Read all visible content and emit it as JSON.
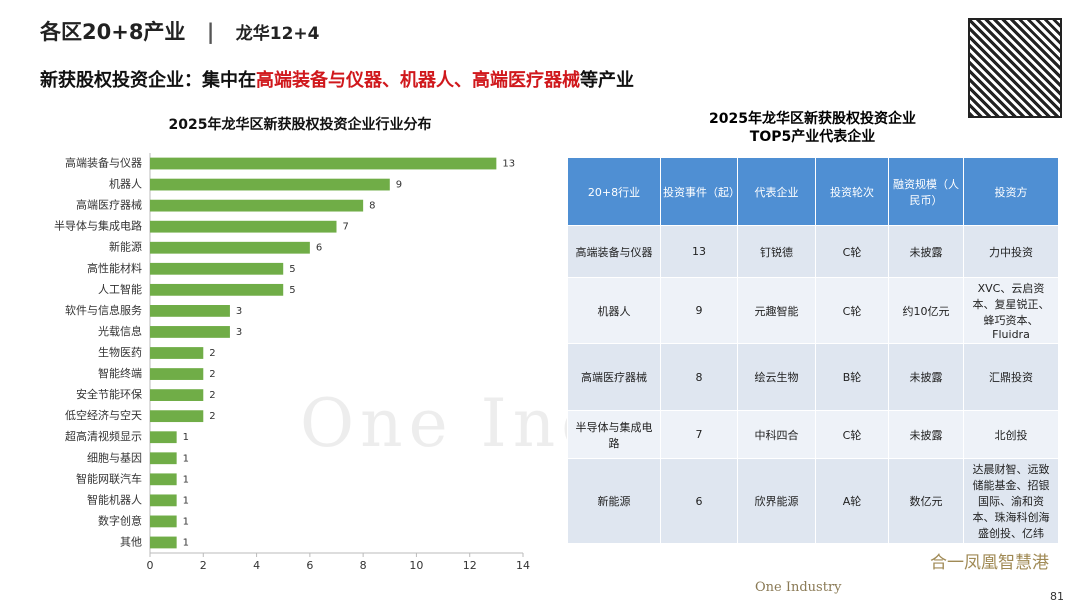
{
  "header": {
    "title": "各区20+8产业",
    "section": "龙华12+4",
    "subtitle_parts": [
      "新获股权投资企业：集中在",
      "高端装备与仪器、机器人、高端医疗器械",
      "等产业"
    ]
  },
  "chart_data": {
    "type": "bar",
    "orientation": "horizontal",
    "title": "2025年龙华区新获股权投资企业行业分布",
    "categories": [
      "高端装备与仪器",
      "机器人",
      "高端医疗器械",
      "半导体与集成电路",
      "新能源",
      "高性能材料",
      "人工智能",
      "软件与信息服务",
      "光载信息",
      "生物医药",
      "智能终端",
      "安全节能环保",
      "低空经济与空天",
      "超高清视频显示",
      "细胞与基因",
      "智能网联汽车",
      "智能机器人",
      "数字创意",
      "其他"
    ],
    "values": [
      13,
      9,
      8,
      7,
      6,
      5,
      5,
      3,
      3,
      2,
      2,
      2,
      2,
      1,
      1,
      1,
      1,
      1,
      1
    ],
    "color": "#70ad47",
    "xlim": [
      0,
      14
    ],
    "xticks": [
      0,
      2,
      4,
      6,
      8,
      10,
      12,
      14
    ]
  },
  "table": {
    "title_lines": [
      "2025年龙华区新获股权投资企业",
      "TOP5产业代表企业"
    ],
    "header": [
      "20+8行业",
      "投资事件（起）",
      "代表企业",
      "投资轮次",
      "融资规模（人民币）",
      "投资方"
    ],
    "rows": [
      [
        "高端装备与仪器",
        "13",
        "钉锐德",
        "C轮",
        "未披露",
        "力中投资"
      ],
      [
        "机器人",
        "9",
        "元趣智能",
        "C轮",
        "约10亿元",
        "XVC、云启资本、复星锐正、蜂巧资本、Fluidra"
      ],
      [
        "高端医疗器械",
        "8",
        "绘云生物",
        "B轮",
        "未披露",
        "汇鼎投资"
      ],
      [
        "半导体与集成电路",
        "7",
        "中科四合",
        "C轮",
        "未披露",
        "北创投"
      ],
      [
        "新能源",
        "6",
        "欣界能源",
        "A轮",
        "数亿元",
        "达晨财智、远致储能基金、招银国际、渝和资本、珠海科创海盛创投、亿纬"
      ]
    ]
  },
  "footer": {
    "watermark": "One Industry",
    "logo_left": "One Industry",
    "logo_right": "合一凤凰智慧港",
    "page": "81"
  }
}
